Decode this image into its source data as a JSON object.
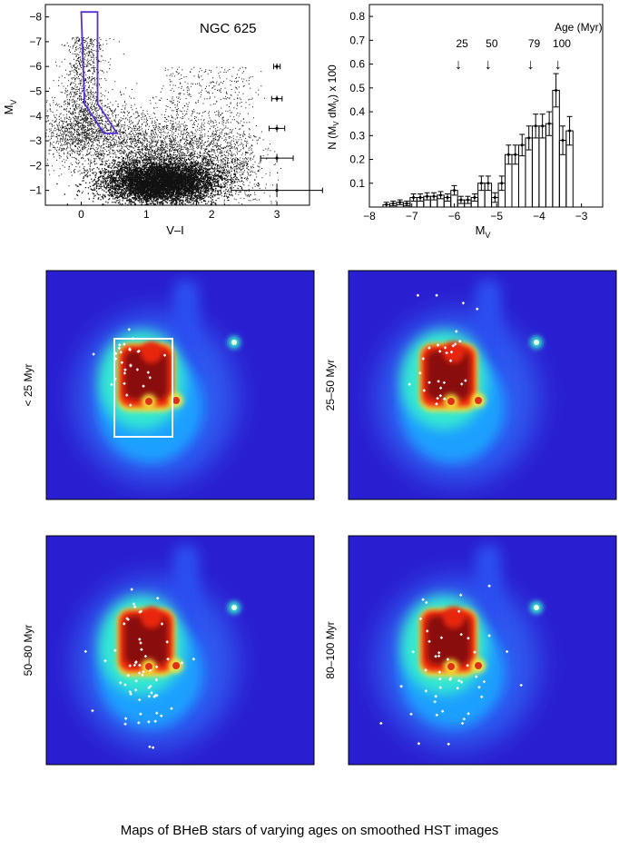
{
  "caption": "Maps of BHeB stars of varying ages on smoothed HST images",
  "colors": {
    "box": "#5a2fd6",
    "bg_map": "#2a1fd0",
    "dots": "#111111"
  },
  "chart_data": [
    {
      "type": "scatter",
      "id": "cmd",
      "title": "NGC 625",
      "xlabel": "V–I",
      "ylabel": "M",
      "ylabel_sub": "V",
      "xlim": [
        -0.55,
        3.5
      ],
      "ylim": [
        -0.4,
        -8.5
      ],
      "xticks": [
        0,
        1,
        2,
        3
      ],
      "xtick_labels": [
        "0",
        "1",
        "2",
        "3"
      ],
      "yticks": [
        -1,
        -2,
        -3,
        -4,
        -5,
        -6,
        -7,
        -8
      ],
      "ytick_labels": [
        "−1",
        "−2",
        "−3",
        "−4",
        "−5",
        "−6",
        "−7",
        "−8"
      ],
      "selection_box": [
        [
          0.0,
          -8.2
        ],
        [
          0.25,
          -8.2
        ],
        [
          0.25,
          -4.5
        ],
        [
          0.55,
          -3.3
        ],
        [
          0.35,
          -3.3
        ],
        [
          0.05,
          -4.5
        ]
      ],
      "error_bars": [
        {
          "x": 3.0,
          "y": -6.0,
          "xerr": 0.05,
          "yerr": 0.05
        },
        {
          "x": 3.0,
          "y": -4.7,
          "xerr": 0.08,
          "yerr": 0.05
        },
        {
          "x": 3.0,
          "y": -3.5,
          "xerr": 0.12,
          "yerr": 0.07
        },
        {
          "x": 3.0,
          "y": -2.3,
          "xerr": 0.25,
          "yerr": 0.1
        },
        {
          "x": 3.0,
          "y": -1.0,
          "xerr": 0.7,
          "yerr": 0.2
        }
      ]
    },
    {
      "type": "bar",
      "id": "lf",
      "xlabel": "M",
      "xlabel_sub": "V",
      "ylabel": "N (M  dM ) x 100",
      "ylabel_parts": [
        "N (M",
        "V",
        " dM",
        "V",
        ") x 100"
      ],
      "xlim": [
        -8,
        -2.5
      ],
      "ylim": [
        0,
        0.85
      ],
      "xticks": [
        -8,
        -7,
        -6,
        -5,
        -4,
        -3
      ],
      "xtick_labels": [
        "−8",
        "−7",
        "−6",
        "−5",
        "−4",
        "−3"
      ],
      "yticks": [
        0.1,
        0.2,
        0.3,
        0.4,
        0.5,
        0.6,
        0.7,
        0.8
      ],
      "ytick_labels": [
        "0.1",
        "0.2",
        "0.3",
        "0.4",
        "0.5",
        "0.6",
        "0.7",
        "0.8"
      ],
      "bin_width": 0.16,
      "x": [
        -7.6,
        -7.44,
        -7.28,
        -7.12,
        -6.96,
        -6.8,
        -6.64,
        -6.48,
        -6.32,
        -6.16,
        -6.0,
        -5.84,
        -5.68,
        -5.52,
        -5.36,
        -5.2,
        -5.04,
        -4.88,
        -4.72,
        -4.56,
        -4.4,
        -4.24,
        -4.08,
        -3.92,
        -3.76,
        -3.6,
        -3.44,
        -3.28
      ],
      "values": [
        0.01,
        0.015,
        0.02,
        0.015,
        0.04,
        0.04,
        0.045,
        0.045,
        0.05,
        0.04,
        0.07,
        0.03,
        0.03,
        0.04,
        0.1,
        0.1,
        0.04,
        0.1,
        0.22,
        0.22,
        0.26,
        0.29,
        0.34,
        0.34,
        0.35,
        0.49,
        0.28,
        0.32
      ],
      "errors": [
        0.01,
        0.01,
        0.01,
        0.01,
        0.015,
        0.015,
        0.015,
        0.015,
        0.015,
        0.015,
        0.02,
        0.015,
        0.015,
        0.015,
        0.03,
        0.03,
        0.02,
        0.03,
        0.04,
        0.04,
        0.045,
        0.05,
        0.05,
        0.05,
        0.05,
        0.07,
        0.06,
        0.06
      ],
      "age_title": "Age (Myr)",
      "age_markers": [
        {
          "mv": -5.9,
          "label": "25"
        },
        {
          "mv": -5.2,
          "label": "50"
        },
        {
          "mv": -4.2,
          "label": "79"
        },
        {
          "mv": -3.55,
          "label": "100"
        }
      ]
    },
    {
      "type": "heatmap",
      "id": "maps",
      "panels": [
        {
          "label": "< 25 Myr",
          "show_box": true
        },
        {
          "label": "25–50 Myr",
          "show_box": false
        },
        {
          "label": "50–80 Myr",
          "show_box": false
        },
        {
          "label": "80–100 Myr",
          "show_box": false
        }
      ]
    }
  ]
}
